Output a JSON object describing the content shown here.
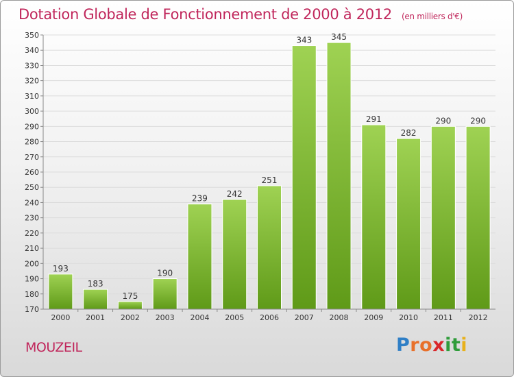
{
  "title": "Dotation Globale de Fonctionnement de 2000 à 2012",
  "subtitle": "(en milliers d'€)",
  "commune": "MOUZEIL",
  "logo": {
    "letters": [
      "P",
      "r",
      "o",
      "x",
      "i",
      "t",
      "i"
    ],
    "colors": [
      "#2f7fc6",
      "#e8702a",
      "#e8702a",
      "#d9262a",
      "#2f9c3a",
      "#2f9c3a",
      "#e8b11c"
    ]
  },
  "colors": {
    "bar_top": "#9fd253",
    "bar_bottom": "#5f9a18",
    "title": "#c0265b"
  },
  "chart_data": {
    "type": "bar",
    "categories": [
      "2000",
      "2001",
      "2002",
      "2003",
      "2004",
      "2005",
      "2006",
      "2007",
      "2008",
      "2009",
      "2010",
      "2011",
      "2012"
    ],
    "values": [
      193,
      183,
      175,
      190,
      239,
      242,
      251,
      343,
      345,
      291,
      282,
      290,
      290
    ],
    "ylim": [
      170,
      350
    ],
    "ytick_step": 10,
    "grid": true,
    "xlabel": "",
    "ylabel": ""
  }
}
